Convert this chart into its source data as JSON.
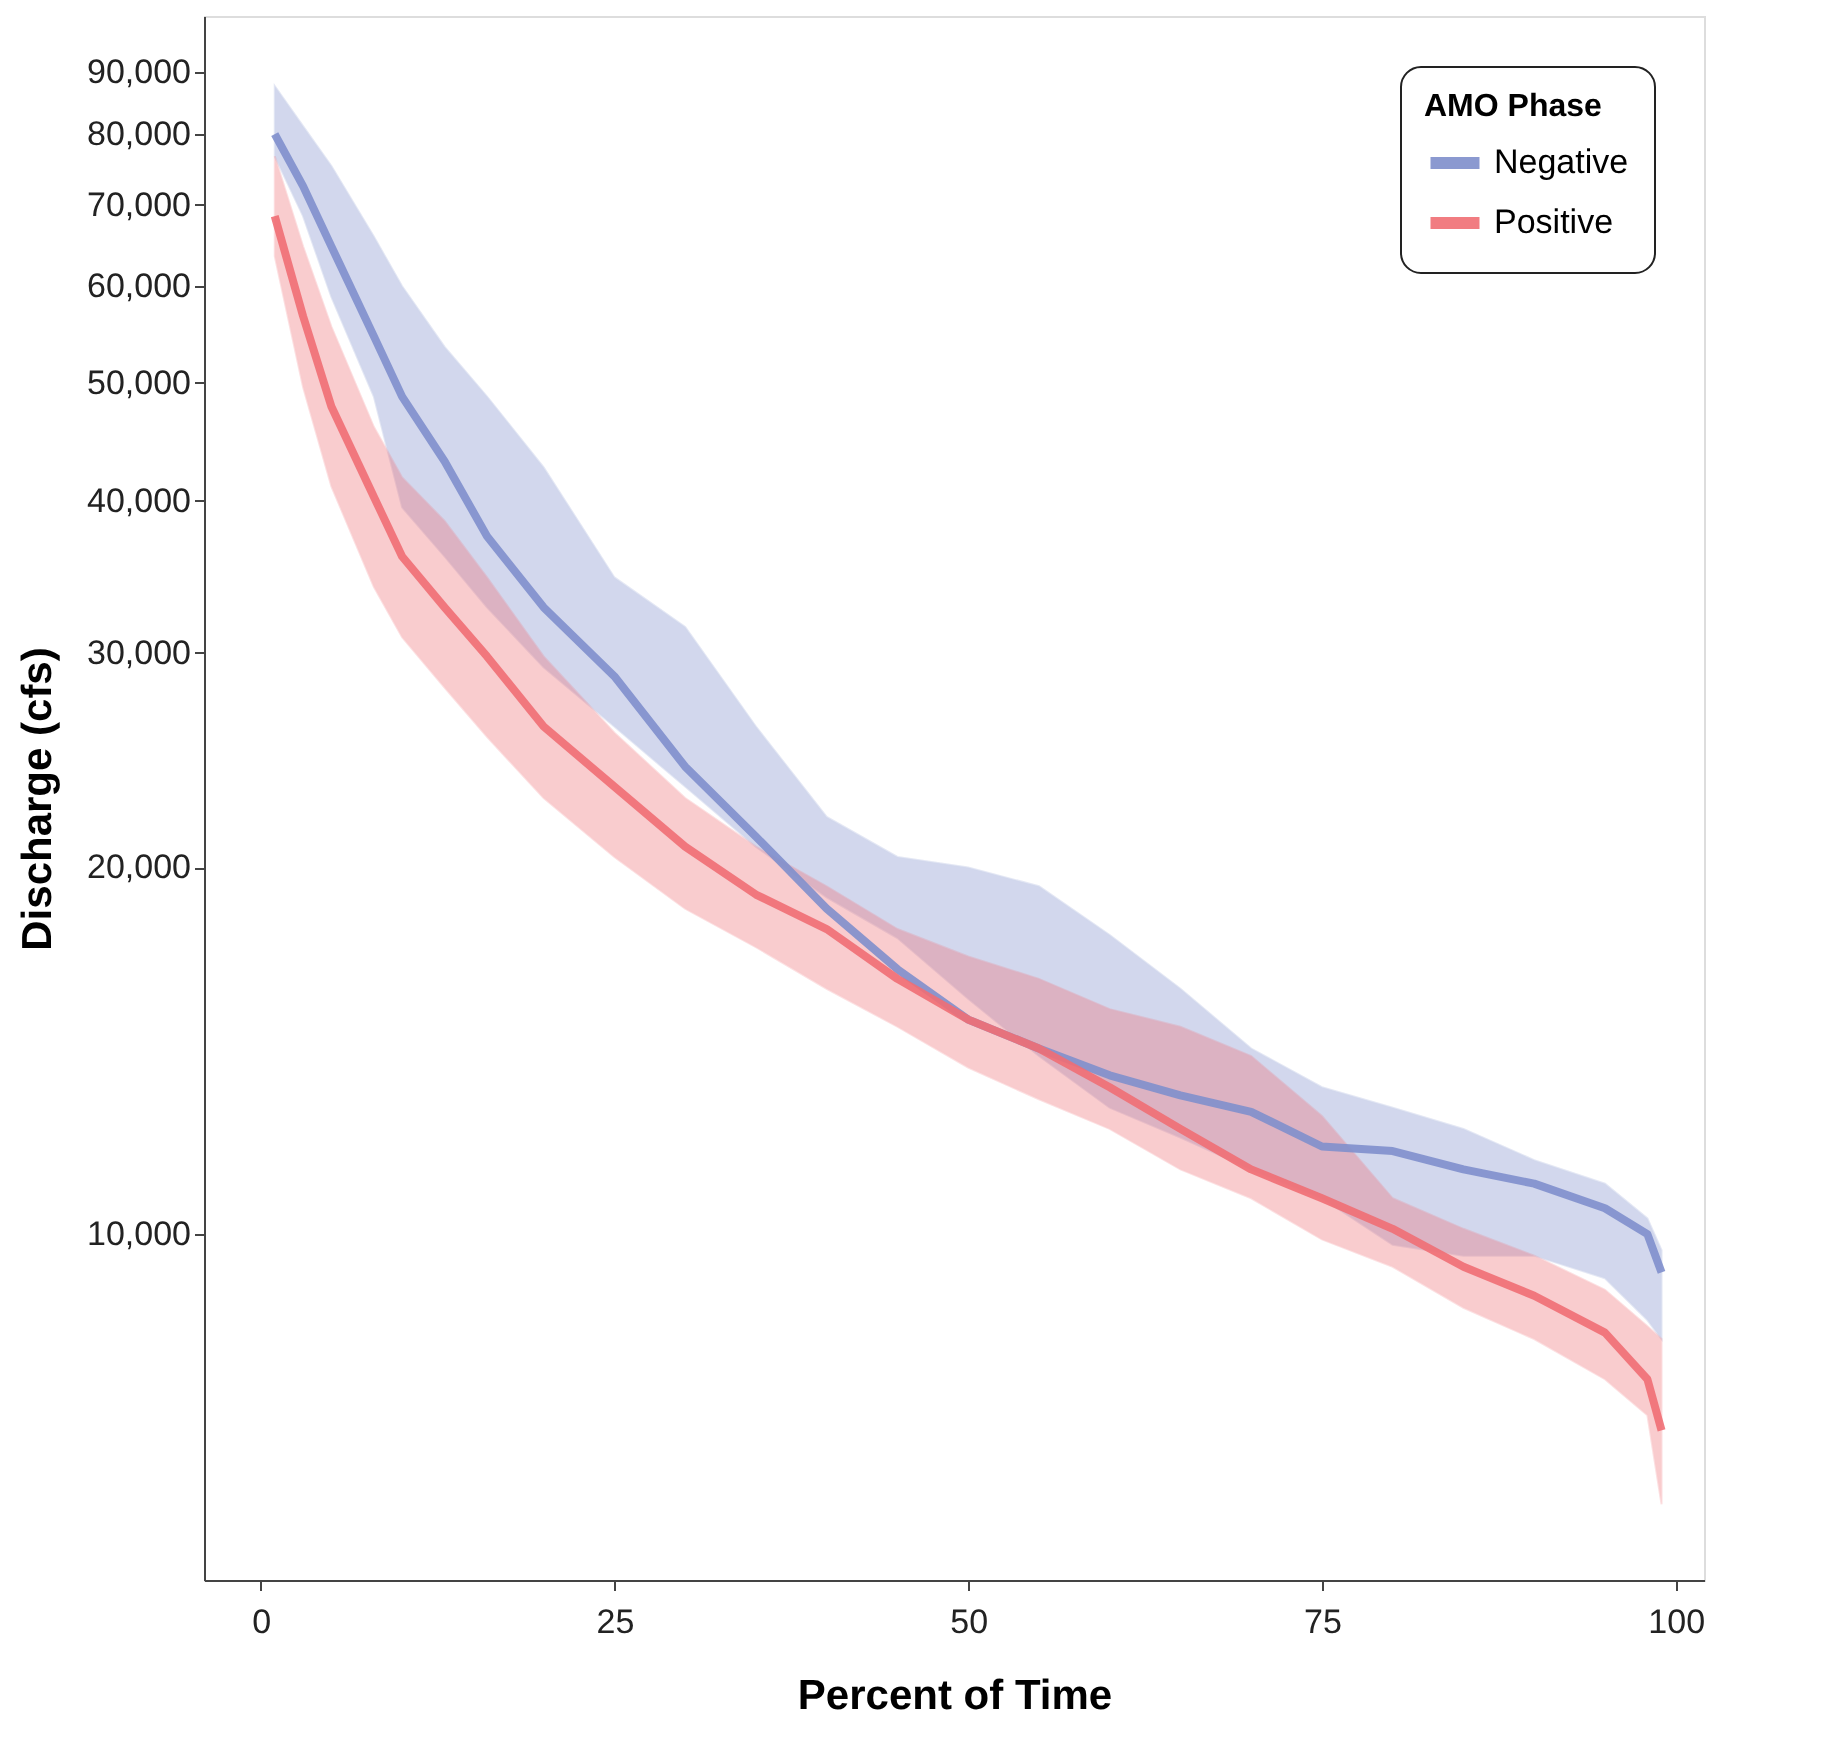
{
  "chart_data": {
    "type": "line",
    "xlabel": "Percent of Time",
    "ylabel": "Discharge (cfs)",
    "legend_title": "AMO Phase",
    "legend": "top right",
    "grid": false,
    "log": "y",
    "marker": "none",
    "line_style": "solid",
    "x": [
      1,
      3,
      5,
      8,
      10,
      13,
      16,
      20,
      25,
      30,
      35,
      40,
      45,
      50,
      55,
      60,
      65,
      70,
      75,
      80,
      85,
      90,
      95,
      98,
      99
    ],
    "xlim": [
      -4,
      102
    ],
    "xticks": [
      0,
      25,
      50,
      75,
      100
    ],
    "ylim": [
      5200,
      100000
    ],
    "yticks": [
      {
        "value": 10000,
        "label": "10,000"
      },
      {
        "value": 20000,
        "label": "20,000"
      },
      {
        "value": 30000,
        "label": "30,000"
      },
      {
        "value": 40000,
        "label": "40,000"
      },
      {
        "value": 50000,
        "label": "50,000"
      },
      {
        "value": 60000,
        "label": "60,000"
      },
      {
        "value": 70000,
        "label": "70,000"
      },
      {
        "value": 80000,
        "label": "80,000"
      },
      {
        "value": 90000,
        "label": "90,000"
      }
    ],
    "series": [
      {
        "name": "Negative",
        "color": "#7f8fcc",
        "values": [
          80000,
          72500,
          64700,
          54600,
          48700,
          43100,
          37400,
          32700,
          28700,
          24200,
          21200,
          18500,
          16500,
          15000,
          14200,
          13500,
          13000,
          12600,
          11800,
          11700,
          11300,
          11000,
          10500,
          10000,
          9300
        ],
        "lower": [
          76700,
          68500,
          58800,
          48700,
          39500,
          36000,
          32700,
          29200,
          26100,
          23300,
          20800,
          18900,
          17500,
          15600,
          14000,
          12700,
          12000,
          11300,
          10700,
          9800,
          9600,
          9600,
          9200,
          8500,
          8200
        ],
        "upper": [
          87600,
          81200,
          75300,
          65900,
          60000,
          53500,
          48700,
          42600,
          34600,
          31500,
          26100,
          22000,
          20400,
          20000,
          19300,
          17600,
          15900,
          14200,
          13200,
          12700,
          12200,
          11500,
          11000,
          10300,
          9700
        ]
      },
      {
        "name": "Positive",
        "color": "#f06e74",
        "values": [
          68500,
          56700,
          47800,
          40300,
          36000,
          32700,
          29800,
          26100,
          23300,
          20800,
          19000,
          17800,
          16200,
          15000,
          14200,
          13200,
          12200,
          11300,
          10700,
          10100,
          9400,
          8900,
          8300,
          7600,
          6900
        ],
        "lower": [
          63500,
          49600,
          41100,
          34000,
          30900,
          28100,
          25600,
          22800,
          20400,
          18500,
          17200,
          15900,
          14800,
          13700,
          12900,
          12200,
          11300,
          10700,
          9900,
          9400,
          8700,
          8200,
          7600,
          7100,
          6000
        ],
        "upper": [
          76700,
          64700,
          55600,
          46000,
          41800,
          38500,
          34600,
          29800,
          25800,
          22800,
          20800,
          19300,
          17800,
          16900,
          16200,
          15300,
          14800,
          14000,
          12500,
          10700,
          10100,
          9600,
          9000,
          8400,
          8200
        ]
      }
    ]
  }
}
